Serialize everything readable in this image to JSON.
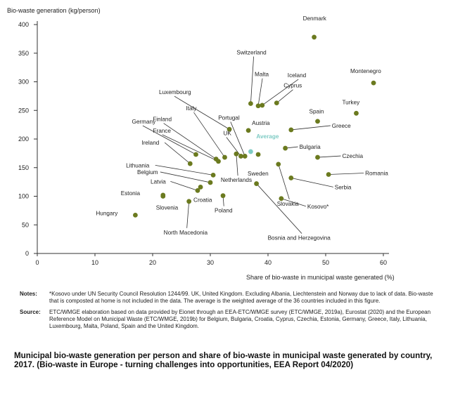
{
  "chart_data": {
    "type": "scatter",
    "ylabel": "Bio-waste generation (kg/person)",
    "xlabel": "Share of bio-waste in municipal waste generated (%)",
    "xlim": [
      0,
      60
    ],
    "ylim": [
      0,
      400
    ],
    "xticks": [
      "0",
      "10",
      "20",
      "30",
      "40",
      "50",
      "60"
    ],
    "yticks": [
      "0",
      "50",
      "100",
      "150",
      "200",
      "250",
      "300",
      "350",
      "400"
    ],
    "grid": false,
    "points": [
      {
        "label": "Denmark",
        "x": 48,
        "y": 378
      },
      {
        "label": "Switzerland",
        "x": 37,
        "y": 262
      },
      {
        "label": "Malta",
        "x": 38.3,
        "y": 258
      },
      {
        "label": "Iceland",
        "x": 39,
        "y": 259
      },
      {
        "label": "Cyprus",
        "x": 41.5,
        "y": 263
      },
      {
        "label": "Portugal",
        "x": 36,
        "y": 170
      },
      {
        "label": "UK",
        "x": 35.3,
        "y": 170
      },
      {
        "label": "Luxembourg",
        "x": 33.3,
        "y": 217
      },
      {
        "label": "Montenegro",
        "x": 58.3,
        "y": 298
      },
      {
        "label": "Turkey",
        "x": 55.3,
        "y": 245
      },
      {
        "label": "Spain",
        "x": 48.6,
        "y": 231
      },
      {
        "label": "Greece",
        "x": 44,
        "y": 216
      },
      {
        "label": "Austria",
        "x": 36.6,
        "y": 215
      },
      {
        "label": "Average",
        "x": 37,
        "y": 178
      },
      {
        "label": "Italy",
        "x": 32.5,
        "y": 168
      },
      {
        "label": "Finland",
        "x": 31,
        "y": 165
      },
      {
        "label": "France",
        "x": 31.4,
        "y": 161
      },
      {
        "label": "Germany",
        "x": 27.5,
        "y": 173
      },
      {
        "label": "Ireland",
        "x": 26.5,
        "y": 157
      },
      {
        "label": "Lithuania",
        "x": 30.5,
        "y": 137
      },
      {
        "label": "Belgium",
        "x": 30,
        "y": 124
      },
      {
        "label": "Latvia",
        "x": 27.8,
        "y": 110
      },
      {
        "label": "Estonia",
        "x": 21.8,
        "y": 102
      },
      {
        "label": "Slovenia",
        "x": 21.8,
        "y": 100
      },
      {
        "label": "Croatia",
        "x": 28.3,
        "y": 116
      },
      {
        "label": "Hungary",
        "x": 17,
        "y": 67
      },
      {
        "label": "North Macedonia",
        "x": 26.3,
        "y": 91
      },
      {
        "label": "Poland",
        "x": 32.2,
        "y": 101
      },
      {
        "label": "Netherlands",
        "x": 34.5,
        "y": 174
      },
      {
        "label": "Sweden",
        "x": 38.3,
        "y": 173
      },
      {
        "label": "Bulgaria",
        "x": 43,
        "y": 184
      },
      {
        "label": "Czechia",
        "x": 48.6,
        "y": 168
      },
      {
        "label": "Romania",
        "x": 50.5,
        "y": 138
      },
      {
        "label": "Serbia",
        "x": 44,
        "y": 132
      },
      {
        "label": "Slovakia",
        "x": 41.8,
        "y": 156
      },
      {
        "label": "Kosovo*",
        "x": 42.3,
        "y": 96
      },
      {
        "label": "Bosnia and Herzegovina",
        "x": 38,
        "y": 122
      }
    ]
  },
  "notes": {
    "label": "Notes:",
    "text": "*Kosovo under UN Security Council Resolution 1244/99. UK, United Kingdom. Excluding Albania, Liechtenstein and Norway due to lack of data. Bio-waste that is composted at home is not included in the data. The average is the weighted average of the 36 countries included in this figure."
  },
  "source": {
    "label": "Source:",
    "text": "ETC/WMGE elaboration based on data provided by Eionet through an EEA-ETC/WMGE survey (ETC/WMGE, 2019a), Eurostat (2020) and the European Reference Model on Municipal Waste (ETC/WMGE, 2019b) for Belgium, Bulgaria, Croatia, Cyprus, Czechia, Estonia, Germany, Greece, Italy, Lithuania, Luxembourg, Malta, Poland, Spain and the United Kingdom."
  },
  "caption": "Municipal bio-waste generation per person and share of bio-waste in municipal waste generated by country, 2017. (Bio-waste in Europe - turning challenges into opportunities, EEA Report 04/2020)",
  "colors": {
    "point": "#6b7a1f",
    "average": "#7ecbc4",
    "axis": "#333333",
    "leader": "#333333"
  }
}
